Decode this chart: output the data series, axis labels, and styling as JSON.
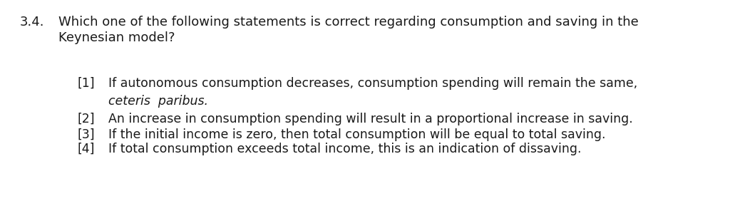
{
  "background_color": "#ffffff",
  "question_number": "3.4.",
  "question_text_line1": "Which one of the following statements is correct regarding consumption and saving in the",
  "question_text_line2": "Keynesian model?",
  "options": [
    {
      "label": "[1]",
      "text_normal": "If autonomous consumption decreases, consumption spending will remain the same,",
      "text_italic": "ceteris  paribus.",
      "has_italic": true
    },
    {
      "label": "[2]",
      "text_normal": "An increase in consumption spending will result in a proportional increase in saving.",
      "has_italic": false
    },
    {
      "label": "[3]",
      "text_normal": "If the initial income is zero, then total consumption will be equal to total saving.",
      "has_italic": false
    },
    {
      "label": "[4]",
      "text_normal": "If total consumption exceeds total income, this is an indication of dissaving.",
      "has_italic": false
    }
  ],
  "font_size_question": 13.0,
  "font_size_options": 12.5,
  "text_color": "#1a1a1a",
  "font_family": "DejaVu Sans",
  "fig_width": 10.24,
  "fig_height": 3.1,
  "dpi": 100
}
